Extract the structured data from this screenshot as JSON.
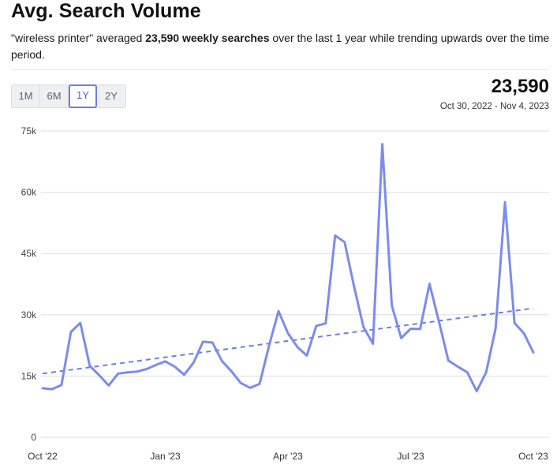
{
  "header": {
    "title": "Avg. Search Volume",
    "summary_prefix": "\"wireless printer\" averaged ",
    "summary_bold1": "23,590 weekly searches",
    "summary_suffix": " over the last 1 year while trending upwards over the time period."
  },
  "tabs": [
    {
      "label": "1M",
      "active": false
    },
    {
      "label": "6M",
      "active": false
    },
    {
      "label": "1Y",
      "active": true
    },
    {
      "label": "2Y",
      "active": false
    }
  ],
  "stat": {
    "value": "23,590",
    "date_range": "Oct 30, 2022 - Nov 4, 2023"
  },
  "colors": {
    "line": "#7b8ced",
    "trend": "#6b7fe6",
    "grid": "#dedede",
    "tab_active": "#6b7fe6"
  },
  "chart_data": {
    "type": "line",
    "title": "",
    "xlabel": "",
    "ylabel": "",
    "ylim": [
      0,
      75000
    ],
    "yticks": [
      0,
      15000,
      30000,
      45000,
      60000,
      75000
    ],
    "ytick_labels": [
      "0",
      "15k",
      "30k",
      "45k",
      "60k",
      "75k"
    ],
    "xtick_labels": [
      "Oct '22",
      "Jan '23",
      "Apr '23",
      "Jul '23",
      "Oct '23"
    ],
    "grid": true,
    "series": [
      {
        "values": [
          12000,
          11800,
          12800,
          25800,
          28000,
          17500,
          15200,
          12700,
          15600,
          15900,
          16100,
          16700,
          17700,
          18600,
          17300,
          15300,
          18300,
          23400,
          23200,
          18700,
          16200,
          13300,
          12100,
          13100,
          22500,
          30900,
          25500,
          22100,
          20000,
          27300,
          27900,
          49400,
          47800,
          37000,
          27000,
          22900,
          71800,
          32300,
          24300,
          26600,
          26500,
          37600,
          28300,
          18800,
          17300,
          15900,
          11300,
          15900,
          26700,
          57600,
          28000,
          25500,
          20800
        ]
      }
    ],
    "trend": {
      "start": 15600,
      "end": 31600
    }
  }
}
